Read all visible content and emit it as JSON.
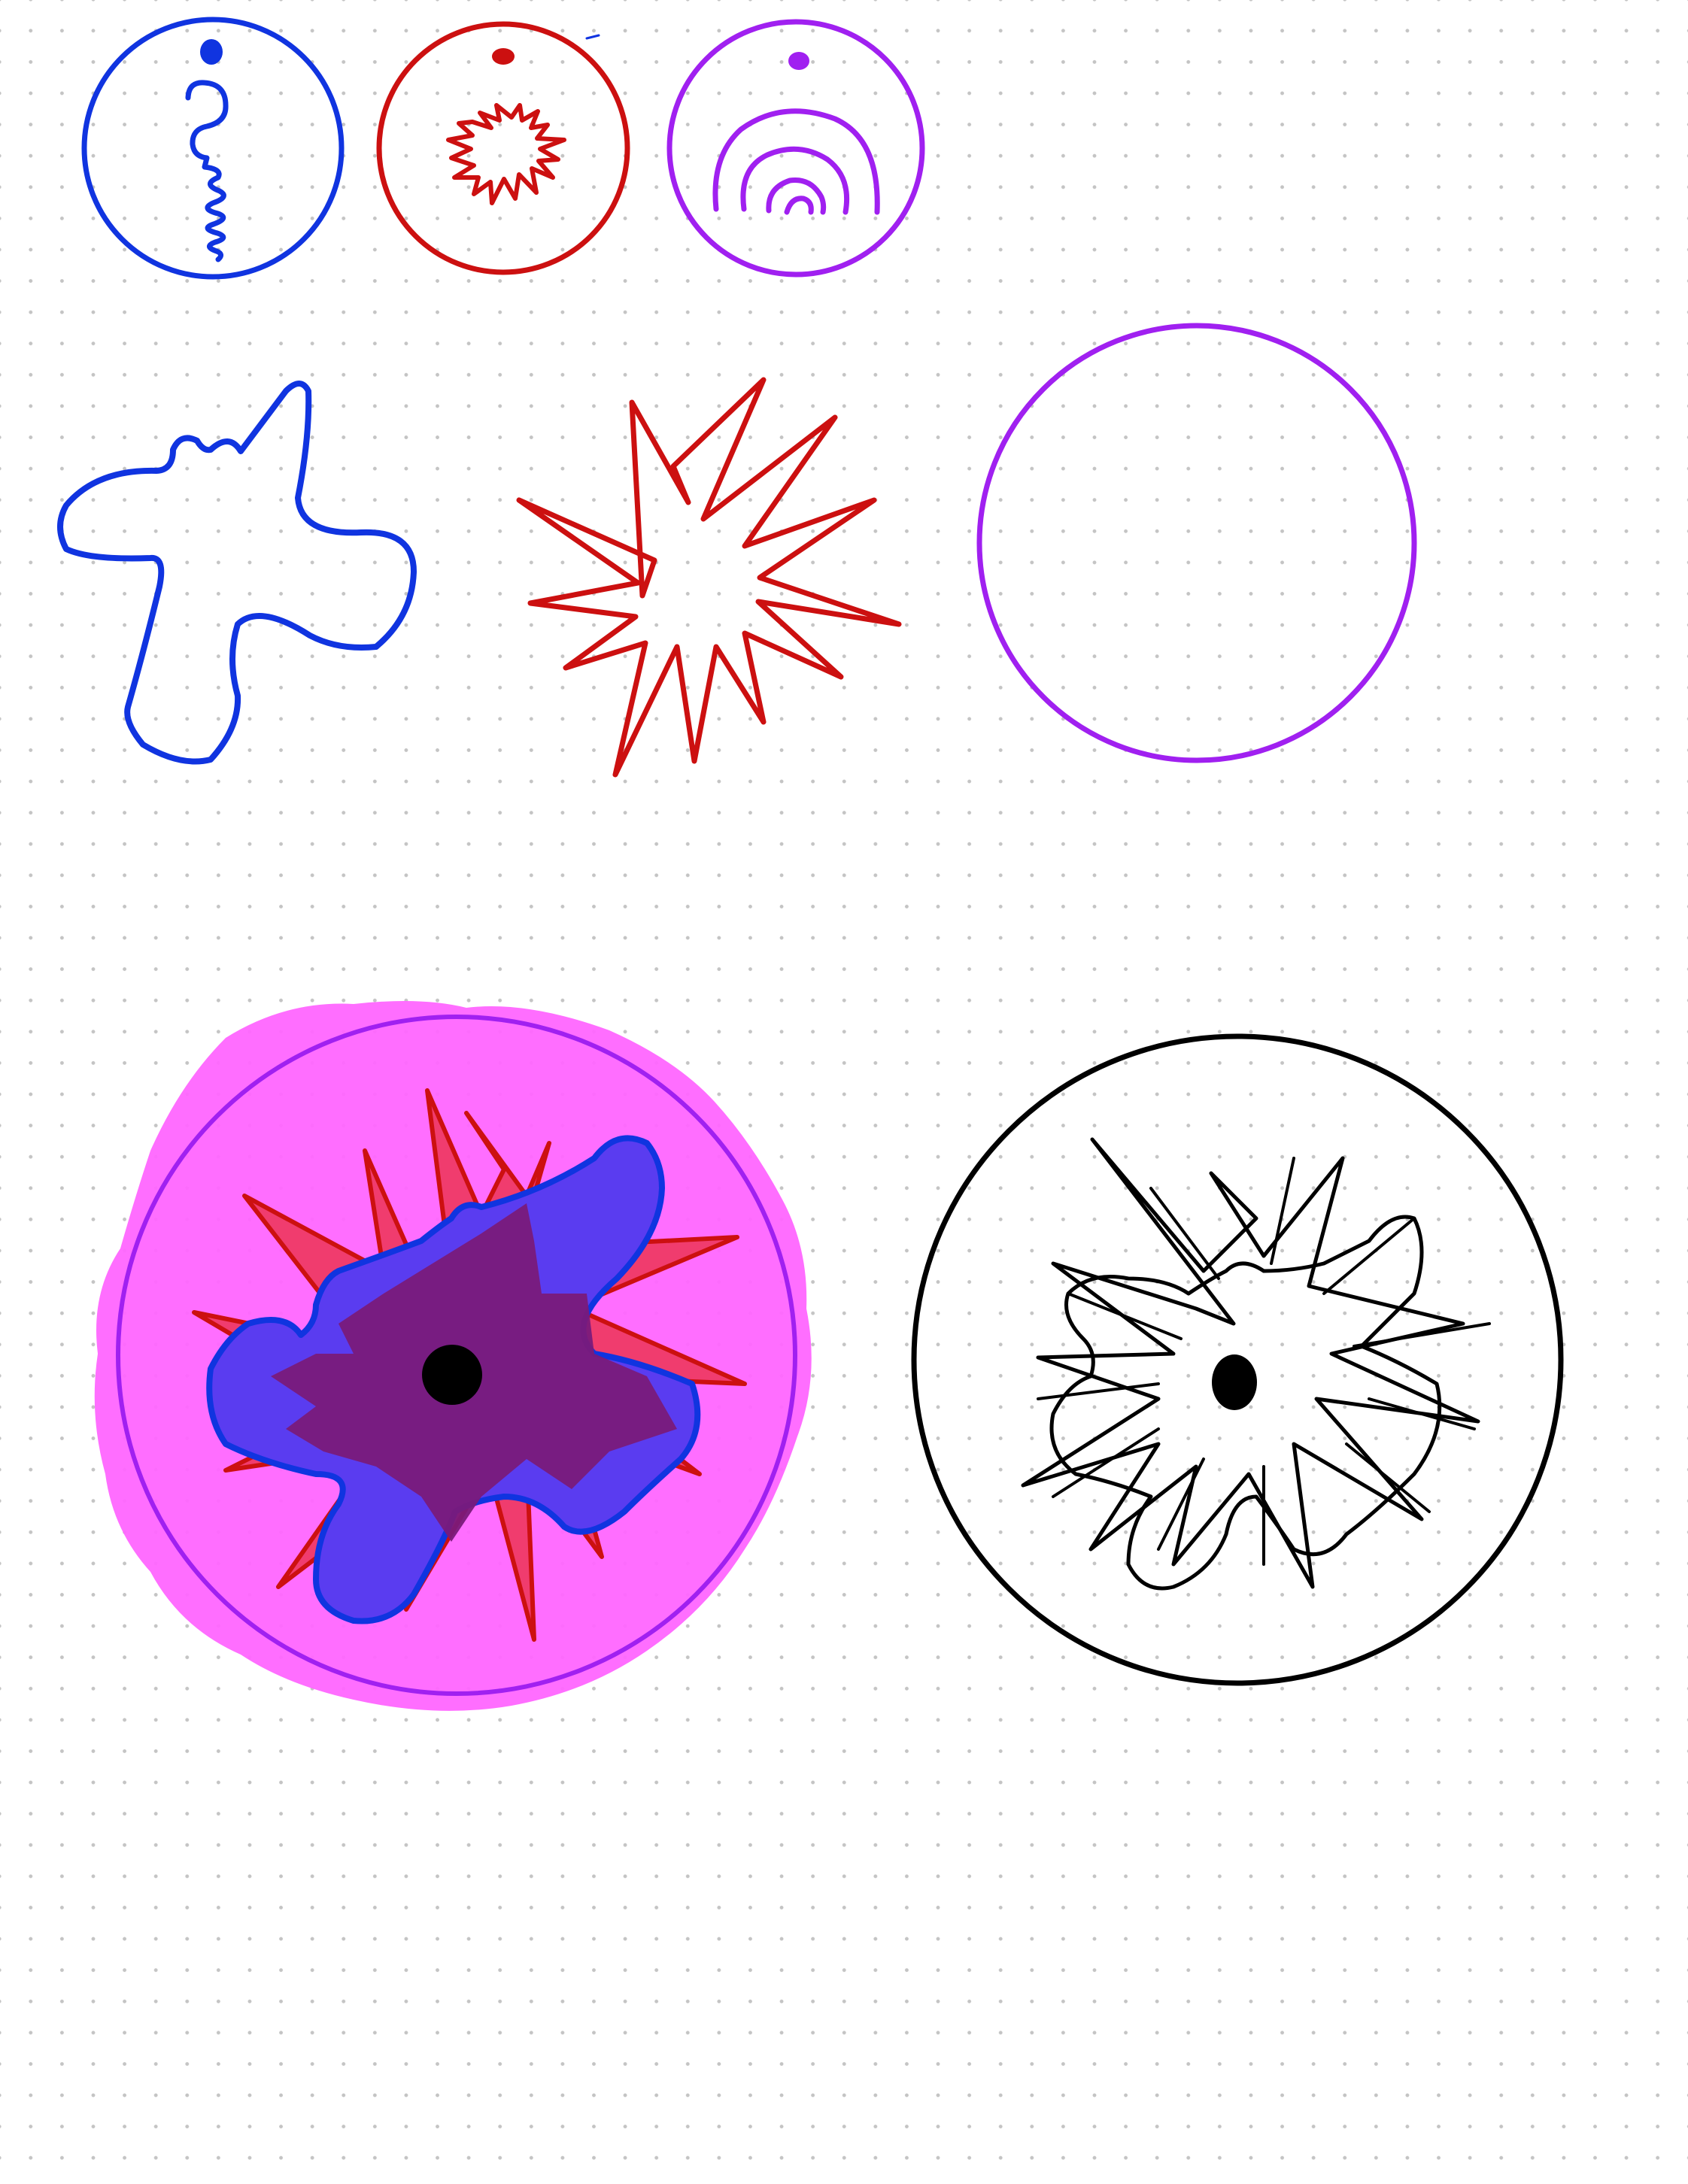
{
  "canvas": {
    "background": "#ffffff",
    "dot_grid_color": "#c4c4c4"
  },
  "colors": {
    "blue": "#1034e0",
    "red": "#cc1010",
    "purple": "#a020f0",
    "black": "#000000",
    "magenta_fill": "#ff66ff",
    "blue_fill": "#5a3cf0",
    "red_fill": "#f03c6e",
    "dark_fill": "#7a1a7a"
  },
  "icons": [
    "blue-question-mark-icon",
    "red-burst-icon",
    "purple-rainbow-icon"
  ],
  "sketches": [
    "blue-blob-shape",
    "red-starburst-shape",
    "purple-circle-shape",
    "layered-composition",
    "black-outline-composition"
  ]
}
